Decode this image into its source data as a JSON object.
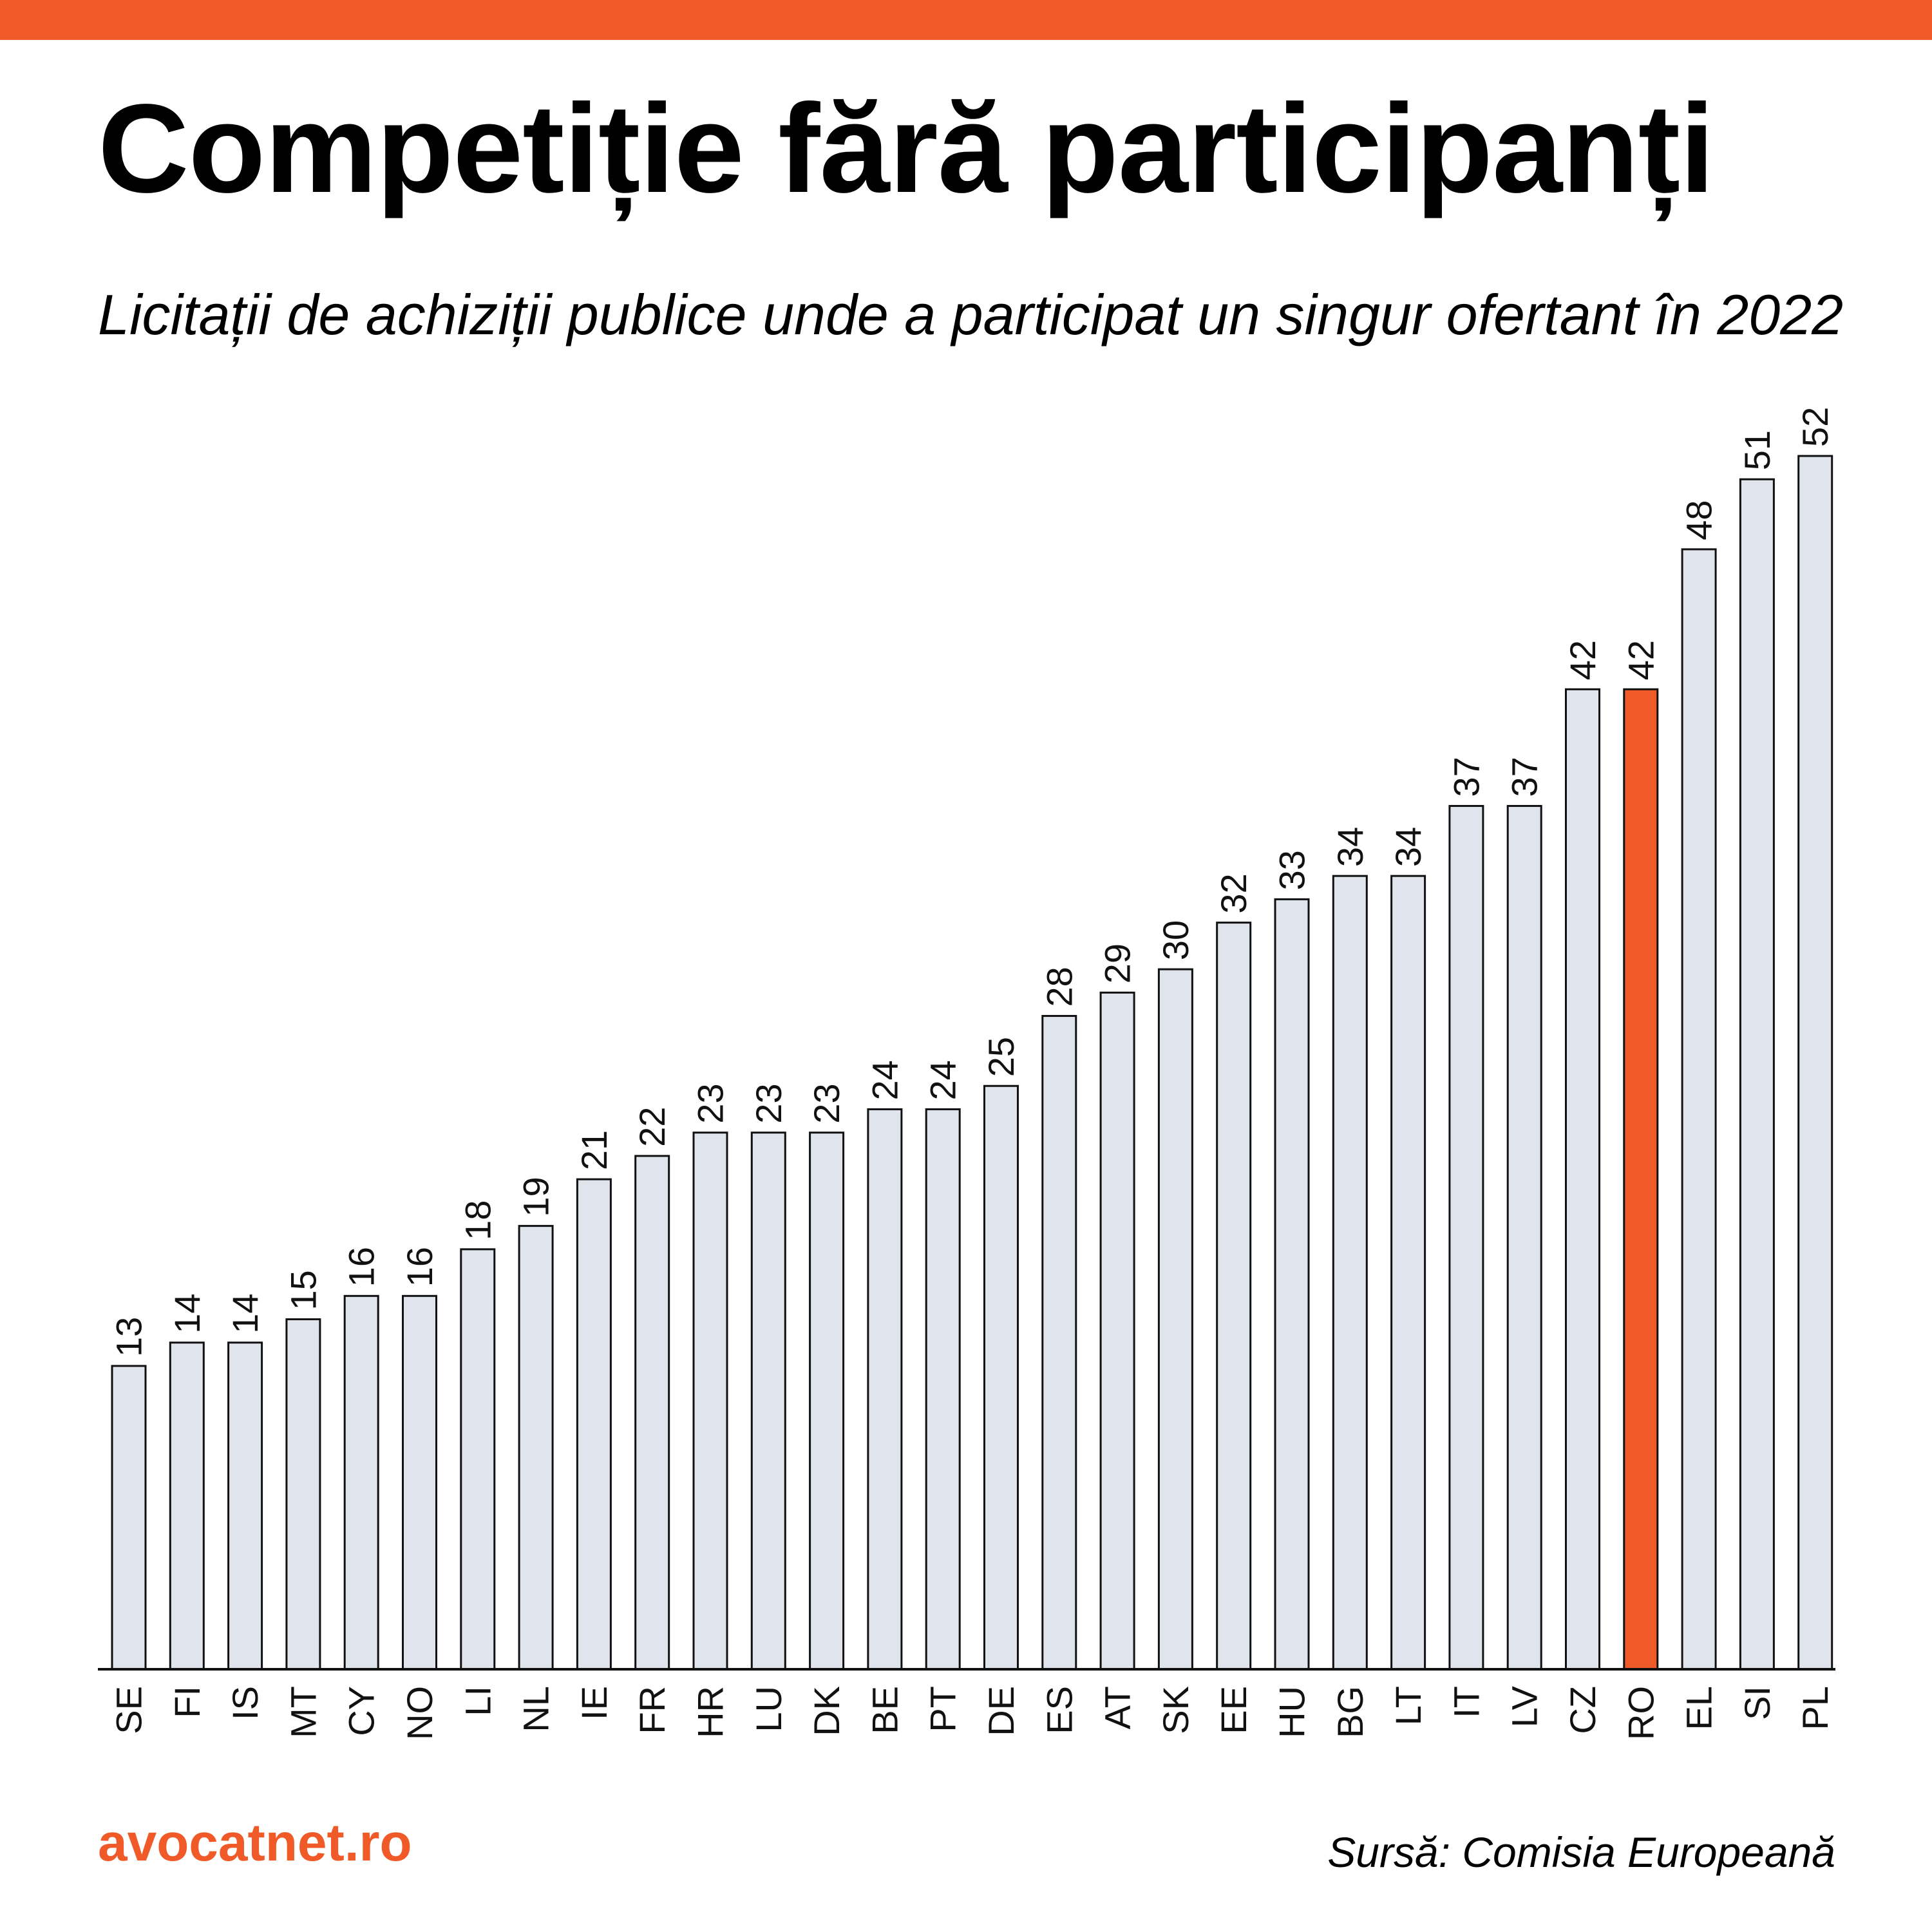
{
  "header": {
    "title": "Competiție fără participanți",
    "subtitle": "Licitații de achiziții publice unde a participat un singur ofertant în 2022"
  },
  "footer": {
    "brand": "avocatnet.ro",
    "source": "Sursă: Comisia Europeană"
  },
  "colors": {
    "accent": "#ef5a28",
    "bar": "#dfe4ed",
    "bar_highlight": "#ef5a28",
    "bar_stroke": "#111111"
  },
  "chart_data": {
    "type": "bar",
    "title": "Competiție fără participanți",
    "subtitle": "Licitații de achiziții publice unde a participat un singur ofertant în 2022",
    "xlabel": "",
    "ylabel": "",
    "categories": [
      "SE",
      "FI",
      "IS",
      "MT",
      "CY",
      "NO",
      "LI",
      "NL",
      "IE",
      "FR",
      "HR",
      "LU",
      "DK",
      "BE",
      "PT",
      "DE",
      "ES",
      "AT",
      "SK",
      "EE",
      "HU",
      "BG",
      "LT",
      "IT",
      "LV",
      "CZ",
      "RO",
      "EL",
      "SI",
      "PL"
    ],
    "values": [
      13,
      14,
      14,
      15,
      16,
      16,
      18,
      19,
      21,
      22,
      23,
      23,
      23,
      24,
      24,
      25,
      28,
      29,
      30,
      32,
      33,
      34,
      34,
      37,
      37,
      42,
      42,
      48,
      51,
      52
    ],
    "highlight": "RO",
    "ylim": [
      0,
      52
    ],
    "grid": false,
    "legend": "none"
  }
}
